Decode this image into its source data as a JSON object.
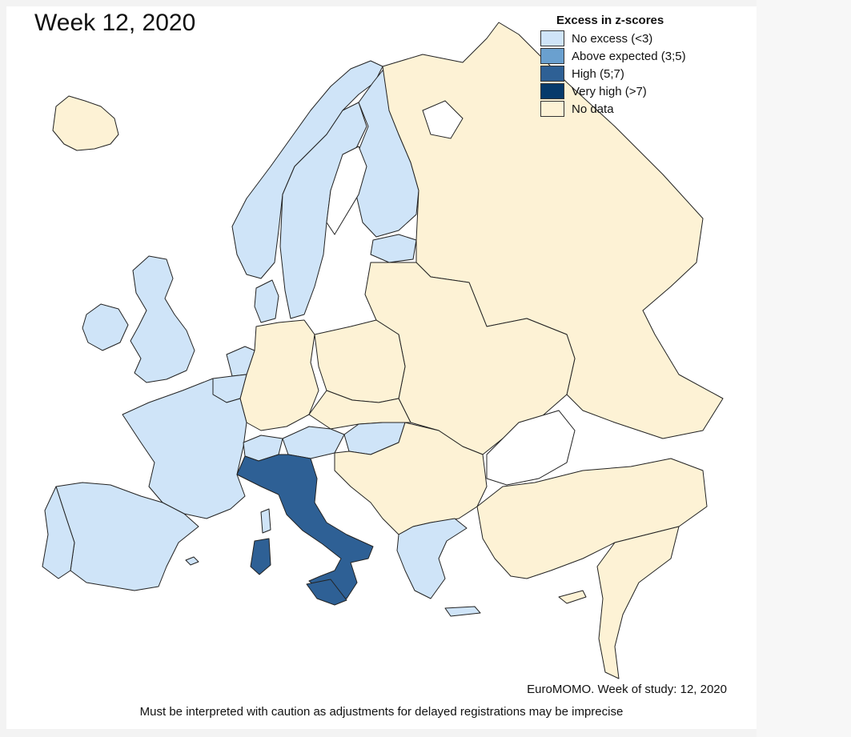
{
  "title": "Week 12, 2020",
  "legend": {
    "title": "Excess in z-scores",
    "items": [
      {
        "label": "No excess (<3)",
        "color": "#cfe4f8"
      },
      {
        "label": "Above expected (3;5)",
        "color": "#6aa0cf"
      },
      {
        "label": "High (5;7)",
        "color": "#2e6095"
      },
      {
        "label": "Very high (>7)",
        "color": "#073a6b"
      },
      {
        "label": "No data",
        "color": "#fdf2d5"
      }
    ]
  },
  "footer": {
    "source": "EuroMOMO. Week of study: 12, 2020",
    "caveat": "Must be interpreted with caution as adjustments for delayed registrations may be imprecise"
  },
  "categories": {
    "Iceland": "No data",
    "Norway": "No excess (<3)",
    "Sweden": "No excess (<3)",
    "Finland": "No excess (<3)",
    "Denmark": "No excess (<3)",
    "Ireland": "No excess (<3)",
    "United Kingdom": "No excess (<3)",
    "Netherlands": "No excess (<3)",
    "Belgium": "No excess (<3)",
    "Luxembourg": "No excess (<3)",
    "France": "No excess (<3)",
    "Spain": "No excess (<3)",
    "Portugal": "No excess (<3)",
    "Switzerland": "No excess (<3)",
    "Austria": "No excess (<3)",
    "Hungary": "No excess (<3)",
    "Estonia": "No excess (<3)",
    "Greece": "No excess (<3)",
    "Malta": "No excess (<3)",
    "Italy": "High (5;7)",
    "Germany": "No data",
    "Poland": "No data",
    "Russia": "No data",
    "Turkey": "No data"
  }
}
